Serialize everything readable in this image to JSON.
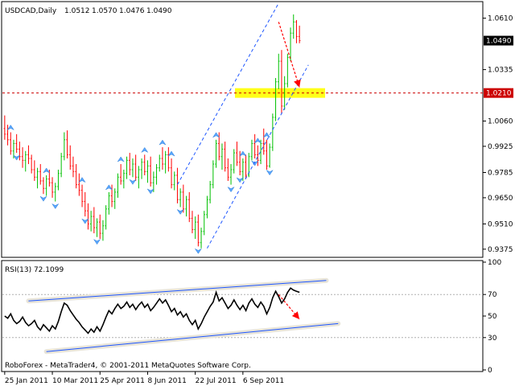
{
  "chart_data": [
    {
      "type": "candlestick",
      "header": {
        "symbol_period": "USDCAD,Daily",
        "open": "1.0512",
        "high": "1.0570",
        "low": "1.0476",
        "close": "1.0490"
      },
      "ylim": [
        0.934,
        1.069
      ],
      "y_ticks": [
        "1.0610",
        "1.0335",
        "1.0060",
        "0.9925",
        "0.9785",
        "0.9650",
        "0.9510",
        "0.9375"
      ],
      "price_tags": [
        {
          "label": "1.0490",
          "value": 1.049,
          "style": "current"
        },
        {
          "label": "1.0210",
          "value": 1.021,
          "style": "level"
        }
      ],
      "support_zone": {
        "value": 1.021,
        "color": "#ffff00"
      },
      "colors": {
        "bull": "#00c000",
        "bear": "#ff0000",
        "fractal": "#5aa7ff",
        "channel": "#1e56ff",
        "arrow": "#ff0000",
        "level_line": "#cc0000"
      },
      "ohlc": [
        [
          1.002,
          1.009,
          0.996,
          0.999
        ],
        [
          0.999,
          1.004,
          0.993,
          0.996
        ],
        [
          0.996,
          1.0,
          0.988,
          0.99
        ],
        [
          0.99,
          0.996,
          0.986,
          0.994
        ],
        [
          0.994,
          0.999,
          0.989,
          0.991
        ],
        [
          0.991,
          0.995,
          0.985,
          0.987
        ],
        [
          0.987,
          0.992,
          0.981,
          0.985
        ],
        [
          0.985,
          0.99,
          0.979,
          0.988
        ],
        [
          0.988,
          0.993,
          0.983,
          0.986
        ],
        [
          0.986,
          0.988,
          0.978,
          0.98
        ],
        [
          0.98,
          0.985,
          0.974,
          0.976
        ],
        [
          0.976,
          0.981,
          0.97,
          0.979
        ],
        [
          0.979,
          0.983,
          0.972,
          0.974
        ],
        [
          0.974,
          0.976,
          0.967,
          0.97
        ],
        [
          0.97,
          0.977,
          0.966,
          0.975
        ],
        [
          0.975,
          0.98,
          0.971,
          0.973
        ],
        [
          0.973,
          0.976,
          0.965,
          0.968
        ],
        [
          0.968,
          0.973,
          0.963,
          0.971
        ],
        [
          0.971,
          0.98,
          0.969,
          0.978
        ],
        [
          0.978,
          0.989,
          0.976,
          0.987
        ],
        [
          0.987,
          1.0,
          0.985,
          0.996
        ],
        [
          0.996,
          1.001,
          0.986,
          0.988
        ],
        [
          0.988,
          0.993,
          0.98,
          0.982
        ],
        [
          0.982,
          0.987,
          0.976,
          0.979
        ],
        [
          0.979,
          0.983,
          0.97,
          0.972
        ],
        [
          0.972,
          0.978,
          0.966,
          0.969
        ],
        [
          0.969,
          0.972,
          0.96,
          0.963
        ],
        [
          0.963,
          0.968,
          0.955,
          0.958
        ],
        [
          0.958,
          0.962,
          0.948,
          0.951
        ],
        [
          0.951,
          0.958,
          0.947,
          0.955
        ],
        [
          0.955,
          0.96,
          0.946,
          0.949
        ],
        [
          0.949,
          0.954,
          0.944,
          0.952
        ],
        [
          0.952,
          0.956,
          0.943,
          0.946
        ],
        [
          0.946,
          0.953,
          0.942,
          0.95
        ],
        [
          0.95,
          0.961,
          0.948,
          0.959
        ],
        [
          0.959,
          0.968,
          0.956,
          0.966
        ],
        [
          0.966,
          0.972,
          0.96,
          0.963
        ],
        [
          0.963,
          0.97,
          0.959,
          0.968
        ],
        [
          0.968,
          0.978,
          0.965,
          0.976
        ],
        [
          0.976,
          0.983,
          0.972,
          0.974
        ],
        [
          0.974,
          0.98,
          0.97,
          0.978
        ],
        [
          0.978,
          0.987,
          0.975,
          0.985
        ],
        [
          0.985,
          0.989,
          0.977,
          0.98
        ],
        [
          0.98,
          0.986,
          0.976,
          0.983
        ],
        [
          0.983,
          0.988,
          0.974,
          0.976
        ],
        [
          0.976,
          0.982,
          0.97,
          0.98
        ],
        [
          0.98,
          0.986,
          0.975,
          0.984
        ],
        [
          0.984,
          0.988,
          0.977,
          0.979
        ],
        [
          0.979,
          0.985,
          0.973,
          0.982
        ],
        [
          0.982,
          0.987,
          0.971,
          0.973
        ],
        [
          0.973,
          0.979,
          0.968,
          0.976
        ],
        [
          0.976,
          0.983,
          0.972,
          0.981
        ],
        [
          0.981,
          0.988,
          0.979,
          0.986
        ],
        [
          0.986,
          0.992,
          0.98,
          0.983
        ],
        [
          0.983,
          0.99,
          0.978,
          0.988
        ],
        [
          0.988,
          0.992,
          0.979,
          0.981
        ],
        [
          0.981,
          0.986,
          0.97,
          0.972
        ],
        [
          0.972,
          0.979,
          0.969,
          0.977
        ],
        [
          0.977,
          0.981,
          0.962,
          0.964
        ],
        [
          0.964,
          0.97,
          0.96,
          0.968
        ],
        [
          0.968,
          0.972,
          0.957,
          0.959
        ],
        [
          0.959,
          0.966,
          0.955,
          0.964
        ],
        [
          0.964,
          0.968,
          0.952,
          0.954
        ],
        [
          0.954,
          0.958,
          0.946,
          0.948
        ],
        [
          0.948,
          0.955,
          0.943,
          0.952
        ],
        [
          0.952,
          0.956,
          0.939,
          0.941
        ],
        [
          0.941,
          0.949,
          0.938,
          0.947
        ],
        [
          0.947,
          0.958,
          0.945,
          0.956
        ],
        [
          0.956,
          0.966,
          0.954,
          0.964
        ],
        [
          0.964,
          0.974,
          0.962,
          0.972
        ],
        [
          0.972,
          0.985,
          0.97,
          0.983
        ],
        [
          0.983,
          0.996,
          0.981,
          0.994
        ],
        [
          0.994,
          1.0,
          0.985,
          0.987
        ],
        [
          0.987,
          0.994,
          0.98,
          0.991
        ],
        [
          0.991,
          0.995,
          0.979,
          0.981
        ],
        [
          0.981,
          0.986,
          0.974,
          0.976
        ],
        [
          0.976,
          0.983,
          0.972,
          0.98
        ],
        [
          0.98,
          0.991,
          0.978,
          0.989
        ],
        [
          0.989,
          0.995,
          0.982,
          0.984
        ],
        [
          0.984,
          0.99,
          0.977,
          0.979
        ],
        [
          0.979,
          0.986,
          0.974,
          0.984
        ],
        [
          0.984,
          0.988,
          0.975,
          0.977
        ],
        [
          0.977,
          0.989,
          0.976,
          0.987
        ],
        [
          0.987,
          0.996,
          0.985,
          0.994
        ],
        [
          0.994,
          0.999,
          0.986,
          0.988
        ],
        [
          0.988,
          0.993,
          0.982,
          0.985
        ],
        [
          0.985,
          0.996,
          0.983,
          0.994
        ],
        [
          0.994,
          1.002,
          0.988,
          0.99
        ],
        [
          0.99,
          0.996,
          0.98,
          0.982
        ],
        [
          0.982,
          0.994,
          0.981,
          0.992
        ],
        [
          0.992,
          1.01,
          0.99,
          1.008
        ],
        [
          1.008,
          1.029,
          1.006,
          1.027
        ],
        [
          1.027,
          1.042,
          1.023,
          1.038
        ],
        [
          1.038,
          1.044,
          1.01,
          1.014
        ],
        [
          1.014,
          1.03,
          1.012,
          1.026
        ],
        [
          1.026,
          1.042,
          1.024,
          1.04
        ],
        [
          1.04,
          1.056,
          1.038,
          1.053
        ],
        [
          1.053,
          1.063,
          1.05,
          1.059
        ],
        [
          1.059,
          1.06,
          1.0476,
          1.0512
        ],
        [
          1.0512,
          1.057,
          1.0476,
          1.049
        ]
      ],
      "fractals_up": [
        2,
        14,
        26,
        35,
        39,
        47,
        53,
        56,
        71,
        80,
        85,
        88
      ],
      "fractals_down": [
        4,
        13,
        17,
        27,
        31,
        43,
        49,
        59,
        65,
        76,
        79,
        84,
        89
      ],
      "channel": {
        "lower": [
          [
            68,
            0.938
          ],
          [
            102,
            1.036
          ]
        ],
        "upper": [
          [
            58,
            0.972
          ],
          [
            92,
            1.069
          ]
        ]
      },
      "forecast_arrow": {
        "from": [
          92,
          1.059
        ],
        "to": [
          99,
          1.024
        ]
      }
    },
    {
      "type": "line",
      "title": "RSI(13) 72.1099",
      "ylim": [
        0,
        100
      ],
      "y_ticks": [
        "100",
        "70",
        "50",
        "30",
        "0"
      ],
      "levels": [
        70,
        30
      ],
      "values": [
        50,
        48,
        52,
        46,
        43,
        45,
        49,
        44,
        41,
        43,
        46,
        40,
        37,
        42,
        39,
        36,
        41,
        38,
        45,
        54,
        62,
        60,
        55,
        51,
        47,
        44,
        40,
        37,
        34,
        38,
        35,
        40,
        36,
        42,
        49,
        55,
        52,
        57,
        61,
        57,
        59,
        63,
        58,
        61,
        56,
        60,
        63,
        58,
        61,
        55,
        58,
        62,
        66,
        62,
        65,
        60,
        54,
        57,
        51,
        54,
        49,
        52,
        46,
        42,
        46,
        38,
        43,
        49,
        54,
        59,
        63,
        72,
        64,
        67,
        62,
        57,
        60,
        65,
        60,
        56,
        60,
        55,
        62,
        66,
        61,
        58,
        63,
        59,
        52,
        58,
        67,
        73,
        68,
        62,
        66,
        72,
        76,
        74,
        73,
        72
      ],
      "channel": {
        "upper": [
          [
            8,
            64
          ],
          [
            108,
            83
          ]
        ],
        "lower": [
          [
            14,
            17
          ],
          [
            112,
            43
          ]
        ]
      },
      "forecast_arrow": {
        "from": [
          92,
          70
        ],
        "to": [
          99,
          47
        ]
      }
    }
  ],
  "x_axis_labels": [
    "25 Jan 2011",
    "10 Mar 2011",
    "25 Apr 2011",
    "8 Jun 2011",
    "22 Jul 2011",
    "6 Sep 2011"
  ],
  "copyright": "RoboForex - MetaTrader4, © 2001-2011 MetaQuotes Software Corp."
}
